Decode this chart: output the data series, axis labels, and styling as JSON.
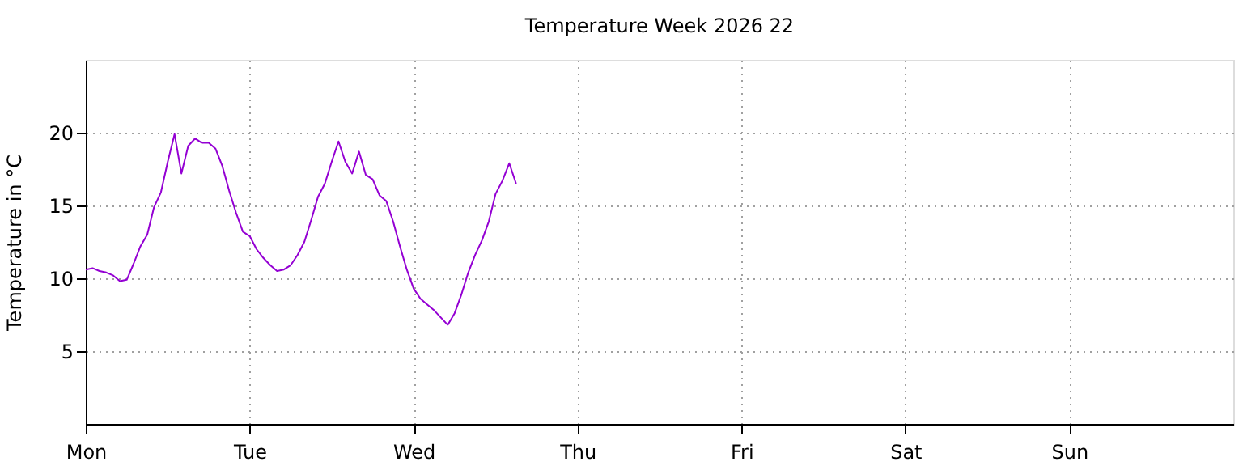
{
  "chart_data": {
    "type": "line",
    "title": "Temperature Week 2026 22",
    "ylabel": "Temperature in °C",
    "categories": [
      "Mon",
      null,
      null,
      null,
      null,
      null,
      null,
      null,
      null,
      null,
      null,
      null,
      null,
      null,
      null,
      null,
      null,
      null,
      null,
      null,
      null,
      null,
      null,
      null,
      "Tue",
      null,
      null,
      null,
      null,
      null,
      null,
      null,
      null,
      null,
      null,
      null,
      null,
      null,
      null,
      null,
      null,
      null,
      null,
      null,
      null,
      null,
      null,
      null,
      "Wed",
      null,
      null,
      null,
      null,
      null,
      null,
      null,
      null,
      null,
      null,
      null,
      null,
      null,
      null,
      null,
      null,
      null,
      null,
      null,
      null,
      null,
      null,
      null,
      "Thu",
      null,
      null,
      null,
      null,
      null,
      null,
      null,
      null,
      null,
      null,
      null,
      null,
      null,
      null,
      null,
      null,
      null,
      null,
      null,
      null,
      null,
      null,
      null,
      "Fri",
      null,
      null,
      null,
      null,
      null,
      null,
      null,
      null,
      null,
      null,
      null,
      null,
      null,
      null,
      null,
      null,
      null,
      null,
      null,
      null,
      null,
      null,
      null,
      "Sat",
      null,
      null,
      null,
      null,
      null,
      null,
      null,
      null,
      null,
      null,
      null,
      null,
      null,
      null,
      null,
      null,
      null,
      null,
      null,
      null,
      null,
      null,
      null,
      "Sun",
      null,
      null,
      null,
      null,
      null,
      null,
      null,
      null,
      null,
      null,
      null,
      null,
      null,
      null,
      null,
      null,
      null,
      null,
      null,
      null,
      null,
      null,
      null
    ],
    "series": [
      {
        "color": "#9400d3",
        "values": [
          10.6,
          10.7,
          10.5,
          10.4,
          10.2,
          9.8,
          9.9,
          11.0,
          12.2,
          13.0,
          14.9,
          15.9,
          18.0,
          19.9,
          17.2,
          19.1,
          19.6,
          19.3,
          19.3,
          18.9,
          17.7,
          16.0,
          14.5,
          13.2,
          12.9,
          12.0,
          11.4,
          10.9,
          10.5,
          10.6,
          10.9,
          11.6,
          12.5,
          14.0,
          15.6,
          16.5,
          18.0,
          19.4,
          18.0,
          17.2,
          18.7,
          17.1,
          16.8,
          15.7,
          15.3,
          13.9,
          12.2,
          10.6,
          9.3,
          8.6,
          8.2,
          7.8,
          7.3,
          6.8,
          7.6,
          8.9,
          10.4,
          11.6,
          12.6,
          13.9,
          15.8,
          16.7,
          17.9,
          16.5,
          null,
          null,
          null,
          null,
          null,
          null,
          null,
          null,
          null,
          null,
          null,
          null,
          null,
          null,
          null,
          null,
          null,
          null,
          null,
          null,
          null,
          null,
          null,
          null,
          null,
          null,
          null,
          null,
          null,
          null,
          null,
          null,
          null,
          null,
          null,
          null,
          null,
          null,
          null,
          null,
          null,
          null,
          null,
          null,
          null,
          null,
          null,
          null,
          null,
          null,
          null,
          null,
          null,
          null,
          null,
          null,
          null,
          null,
          null,
          null,
          null,
          null,
          null,
          null,
          null,
          null,
          null,
          null,
          null,
          null,
          null,
          null,
          null,
          null,
          null,
          null,
          null,
          null,
          null,
          null,
          null,
          null,
          null,
          null,
          null,
          null,
          null,
          null,
          null,
          null,
          null,
          null,
          null,
          null,
          null,
          null,
          null,
          null,
          null,
          null,
          null,
          null,
          null,
          null
        ]
      }
    ],
    "ylim": [
      0,
      25
    ],
    "yticks": [
      5,
      10,
      15,
      20
    ],
    "grid": true,
    "line_style": "solid",
    "marker": "none"
  }
}
